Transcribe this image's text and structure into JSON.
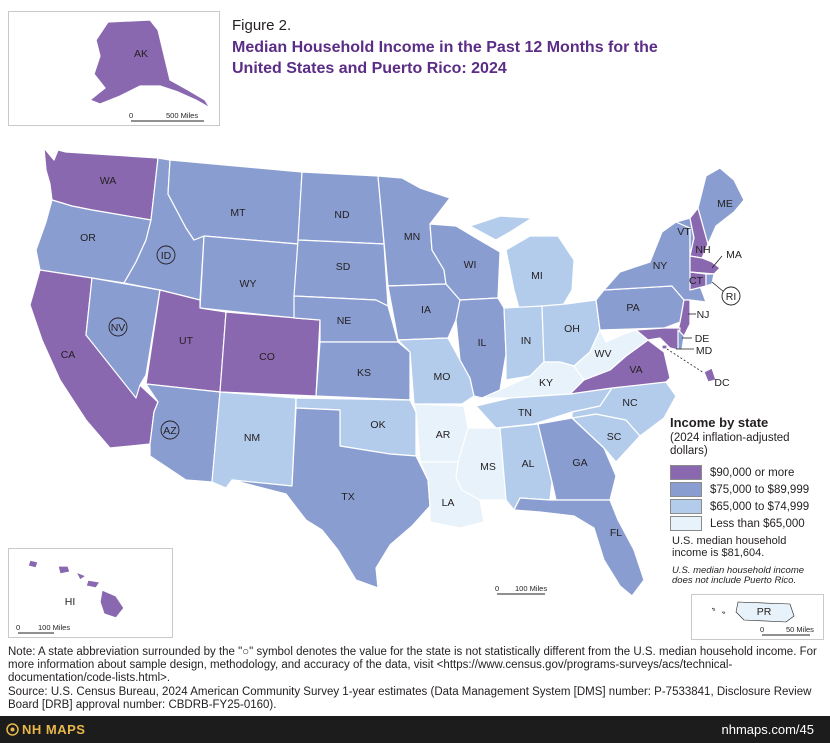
{
  "figure": {
    "label": "Figure 2.",
    "title": "Median Household Income in the Past 12 Months for the United States and Puerto Rico: 2024"
  },
  "colors": {
    "cat1": "#8a68b0",
    "cat2": "#8a9dd1",
    "cat3": "#b4ccec",
    "cat4": "#e7f2fa"
  },
  "legend": {
    "title": "Income by state",
    "subtitle": "(2024 inflation-adjusted dollars)",
    "items": [
      {
        "label": "$90,000 or more",
        "color": "#8a68b0"
      },
      {
        "label": "$75,000 to $89,999",
        "color": "#8a9dd1"
      },
      {
        "label": "$65,000 to $74,999",
        "color": "#b4ccec"
      },
      {
        "label": "Less than $65,000",
        "color": "#e7f2fa"
      }
    ]
  },
  "median_note": "U.S. median household income is $81,604.",
  "pr_note": "U.S. median household income does not include Puerto Rico.",
  "scales": {
    "ak": "500 Miles",
    "main": "100 Miles",
    "hi": "100 Miles",
    "pr": "50 Miles",
    "zero": "0"
  },
  "states": {
    "WA": "WA",
    "OR": "OR",
    "CA": "CA",
    "ID": "ID",
    "NV": "NV",
    "MT": "MT",
    "WY": "WY",
    "UT": "UT",
    "AZ": "AZ",
    "CO": "CO",
    "NM": "NM",
    "ND": "ND",
    "SD": "SD",
    "NE": "NE",
    "KS": "KS",
    "OK": "OK",
    "TX": "TX",
    "MN": "MN",
    "IA": "IA",
    "MO": "MO",
    "AR": "AR",
    "LA": "LA",
    "WI": "WI",
    "IL": "IL",
    "MS": "MS",
    "MI": "MI",
    "IN": "IN",
    "KY": "KY",
    "TN": "TN",
    "AL": "AL",
    "OH": "OH",
    "WV": "WV",
    "VA": "VA",
    "NC": "NC",
    "SC": "SC",
    "GA": "GA",
    "FL": "FL",
    "PA": "PA",
    "NY": "NY",
    "VT": "VT",
    "NH": "NH",
    "ME": "ME",
    "MA": "MA",
    "CT": "CT",
    "RI": "RI",
    "NJ": "NJ",
    "DE": "DE",
    "MD": "MD",
    "DC": "DC",
    "AK": "AK",
    "HI": "HI",
    "PR": "PR"
  },
  "notes": {
    "note": "Note: A state abbreviation surrounded by the \"○\" symbol denotes the value for the state is not statistically different from the U.S. median household income. For more information about sample design, methodology, and accuracy of the data, visit <https://www.census.gov/programs-surveys/acs/technical-documentation/code-lists.html>.",
    "source": "Source: U.S. Census Bureau, 2024 American Community Survey 1-year estimates (Data Management System [DMS] number: P-7533841, Disclosure Review Board [DRB] approval number: CBDRB-FY25-0160)."
  },
  "footer": {
    "brand": "NH MAPS",
    "url": "nhmaps.com/45"
  }
}
